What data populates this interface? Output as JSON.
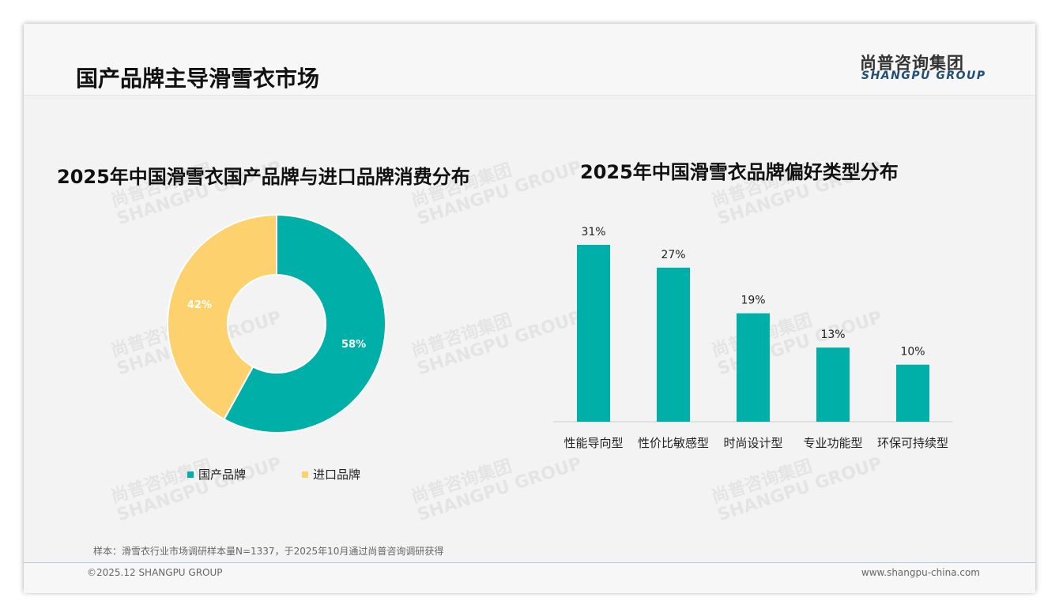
{
  "header": {
    "title": "国产品牌主导滑雪衣市场",
    "logo_cn": "尚普咨询集团",
    "logo_en": "SHANGPU GROUP"
  },
  "colors": {
    "teal": "#00b0a8",
    "yellow": "#fdd26e"
  },
  "chart_data": [
    {
      "type": "pie",
      "title": "2025年中国滑雪衣国产品牌与进口品牌消费分布",
      "categories": [
        "国产品牌",
        "进口品牌"
      ],
      "values": [
        58,
        42
      ],
      "labels": [
        "58%",
        "42%"
      ],
      "legend_position": "bottom"
    },
    {
      "type": "bar",
      "title": "2025年中国滑雪衣品牌偏好类型分布",
      "categories": [
        "性能导向型",
        "性价比敏感型",
        "时尚设计型",
        "专业功能型",
        "环保可持续型"
      ],
      "values": [
        31,
        27,
        19,
        13,
        10
      ],
      "labels": [
        "31%",
        "27%",
        "19%",
        "13%",
        "10%"
      ],
      "ylim": [
        0,
        31
      ],
      "grid": false
    }
  ],
  "footer": {
    "note": "样本：滑雪衣行业市场调研样本量N=1337，于2025年10月通过尚普咨询调研获得",
    "copyright": "©2025.12 SHANGPU GROUP",
    "url": "www.shangpu-china.com"
  }
}
